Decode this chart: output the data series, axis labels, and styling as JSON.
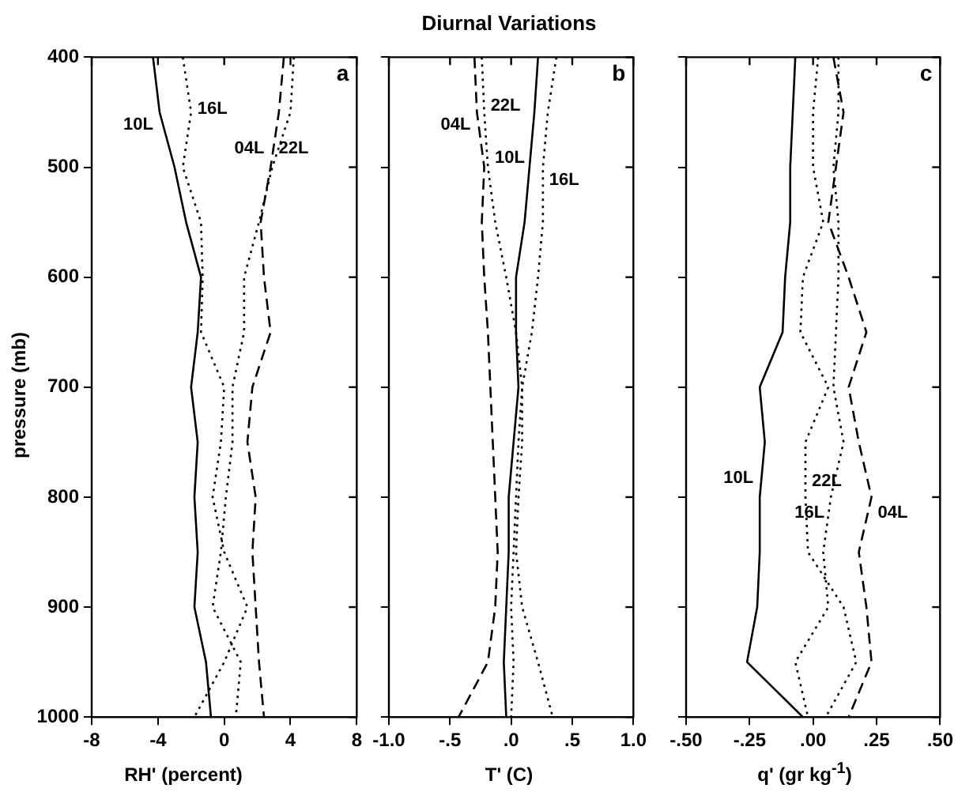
{
  "chart_data": [
    {
      "type": "line",
      "orientation": "horizontal",
      "xlabel": "RH' (percent)",
      "ylabel": "pressure (mb)",
      "xlim": [
        -8,
        8
      ],
      "xticks": [
        -8,
        -4,
        0,
        4,
        8
      ],
      "ylim": [
        1000,
        400
      ],
      "yticks": [
        400,
        500,
        600,
        700,
        800,
        900,
        1000
      ],
      "legend": false,
      "grid": false,
      "marker": "none",
      "x": [
        400,
        450,
        500,
        550,
        600,
        650,
        700,
        750,
        800,
        850,
        900,
        950,
        1000
      ],
      "series": [
        {
          "name": "10L",
          "color": "#000000",
          "line_style": "solid",
          "values": [
            -4.3,
            -3.9,
            -3.0,
            -2.3,
            -1.4,
            -1.6,
            -2.0,
            -1.6,
            -1.8,
            -1.6,
            -1.8,
            -1.1,
            -0.8
          ]
        },
        {
          "name": "16L",
          "color": "#000000",
          "line_style": "dotted",
          "values": [
            -2.5,
            -2.0,
            -2.5,
            -1.4,
            -1.3,
            -1.4,
            0.0,
            -0.2,
            -0.7,
            0.0,
            1.4,
            0.0,
            -1.8
          ]
        },
        {
          "name": "04L",
          "color": "#000000",
          "line_style": "dashed",
          "values": [
            3.6,
            3.3,
            2.8,
            2.2,
            2.4,
            2.8,
            1.7,
            1.4,
            1.9,
            1.7,
            1.9,
            2.1,
            2.4
          ]
        },
        {
          "name": "22L",
          "color": "#000000",
          "line_style": "dotted",
          "values": [
            4.2,
            4.0,
            2.9,
            2.1,
            1.2,
            1.2,
            0.5,
            0.5,
            0.1,
            -0.2,
            -0.7,
            1.0,
            0.7
          ]
        }
      ],
      "annotations": [
        "a"
      ]
    },
    {
      "type": "line",
      "orientation": "horizontal",
      "title": "Diurnal Variations",
      "xlabel": "T' (C)",
      "xlim": [
        -1,
        1
      ],
      "xticks": [
        {
          "value": -1,
          "label": "-1.0"
        },
        {
          "value": -0.5,
          "label": "-.5"
        },
        {
          "value": 0,
          "label": ".0"
        },
        {
          "value": 0.5,
          "label": ".5"
        },
        {
          "value": 1,
          "label": "1.0"
        }
      ],
      "ylim": [
        1000,
        400
      ],
      "yticks": [
        {
          "value": 400,
          "label": null
        },
        {
          "value": 500,
          "label": null
        },
        {
          "value": 600,
          "label": null
        },
        {
          "value": 700,
          "label": null
        },
        {
          "value": 800,
          "label": null
        },
        {
          "value": 900,
          "label": null
        },
        {
          "value": 1000,
          "label": null
        }
      ],
      "tick_labels": "x",
      "legend": false,
      "grid": false,
      "marker": "none",
      "x": [
        400,
        450,
        500,
        550,
        600,
        650,
        700,
        750,
        800,
        850,
        900,
        950,
        1000
      ],
      "series": [
        {
          "name": "10L",
          "color": "#000000",
          "line_style": "solid",
          "values": [
            0.22,
            0.19,
            0.15,
            0.11,
            0.04,
            0.04,
            0.06,
            0.02,
            -0.02,
            -0.02,
            -0.04,
            -0.06,
            -0.04
          ]
        },
        {
          "name": "16L",
          "color": "#000000",
          "line_style": "dotted",
          "values": [
            0.37,
            0.3,
            0.26,
            0.26,
            0.22,
            0.17,
            0.09,
            0.09,
            0.06,
            0.04,
            0.09,
            0.22,
            0.34
          ]
        },
        {
          "name": "04L",
          "color": "#000000",
          "line_style": "dashed",
          "values": [
            -0.3,
            -0.28,
            -0.22,
            -0.24,
            -0.22,
            -0.19,
            -0.17,
            -0.15,
            -0.13,
            -0.11,
            -0.13,
            -0.19,
            -0.43
          ]
        },
        {
          "name": "22L",
          "color": "#000000",
          "line_style": "dotted",
          "values": [
            -0.24,
            -0.22,
            -0.19,
            -0.13,
            -0.04,
            0.04,
            0.09,
            0.06,
            0.04,
            0.02,
            0.0,
            0.02,
            0.0
          ]
        }
      ],
      "annotations": [
        "b"
      ]
    },
    {
      "type": "line",
      "orientation": "horizontal",
      "xlabel": "q' (gr kg$^{-1}$)",
      "xlim": [
        -0.5,
        0.5
      ],
      "xticks": [
        {
          "value": -0.5,
          "label": "-.50"
        },
        {
          "value": -0.25,
          "label": "-.25"
        },
        {
          "value": 0,
          "label": ".00"
        },
        {
          "value": 0.25,
          "label": ".25"
        },
        {
          "value": 0.5,
          "label": ".50"
        }
      ],
      "ylim": [
        1000,
        400
      ],
      "yticks": [
        {
          "value": 400,
          "label": null
        },
        {
          "value": 500,
          "label": null
        },
        {
          "value": 600,
          "label": null
        },
        {
          "value": 700,
          "label": null
        },
        {
          "value": 800,
          "label": null
        },
        {
          "value": 900,
          "label": null
        },
        {
          "value": 1000,
          "label": null
        }
      ],
      "tick_labels": "x",
      "legend": false,
      "grid": false,
      "marker": "none",
      "x": [
        400,
        450,
        500,
        550,
        600,
        650,
        700,
        750,
        800,
        850,
        900,
        950,
        1000
      ],
      "series": [
        {
          "name": "10L",
          "color": "#000000",
          "line_style": "solid",
          "values": [
            -0.07,
            -0.08,
            -0.09,
            -0.09,
            -0.11,
            -0.12,
            -0.21,
            -0.19,
            -0.21,
            -0.21,
            -0.22,
            -0.26,
            -0.04
          ]
        },
        {
          "name": "16L",
          "color": "#000000",
          "line_style": "dotted",
          "values": [
            0.1,
            0.1,
            0.08,
            0.1,
            0.1,
            0.09,
            0.08,
            0.12,
            0.07,
            0.04,
            0.06,
            -0.07,
            -0.02
          ]
        },
        {
          "name": "04L",
          "color": "#000000",
          "line_style": "dashed",
          "values": [
            0.08,
            0.12,
            0.09,
            0.06,
            0.14,
            0.21,
            0.14,
            0.18,
            0.23,
            0.18,
            0.21,
            0.23,
            0.14
          ]
        },
        {
          "name": "22L",
          "color": "#000000",
          "line_style": "dotted",
          "values": [
            0.02,
            0.0,
            0.0,
            0.04,
            -0.04,
            -0.05,
            0.06,
            -0.03,
            -0.03,
            -0.02,
            0.12,
            0.17,
            0.05
          ]
        }
      ],
      "annotations": [
        "c"
      ]
    }
  ]
}
